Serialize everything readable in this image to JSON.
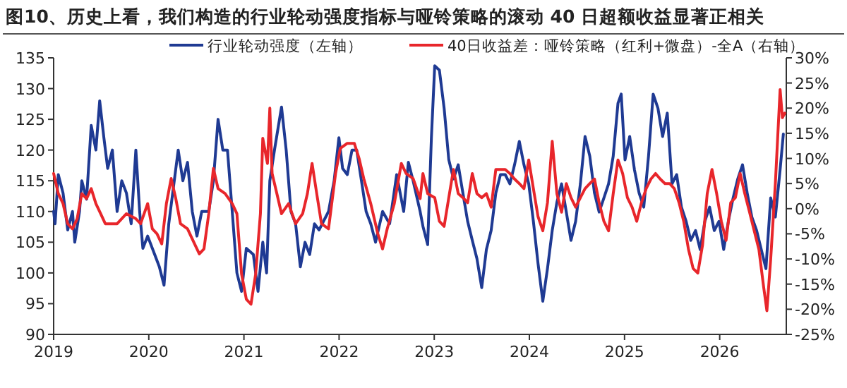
{
  "chart_data": {
    "type": "line",
    "title": "图10、历史上看，我们构造的行业轮动强度指标与哑铃策略的滚动 40 日超额收益显著正相关",
    "legend": "top",
    "grid": false,
    "marker": "none",
    "line_style": "solid",
    "xlim": [
      2019,
      2026.7
    ],
    "xticks": [
      2019,
      2020,
      2021,
      2022,
      2023,
      2024,
      2025,
      2026
    ],
    "ylim": [
      90,
      135
    ],
    "yticks": [
      90,
      95,
      100,
      105,
      110,
      115,
      120,
      125,
      130,
      135
    ],
    "y2lim": [
      -25,
      30
    ],
    "y2ticks": [
      {
        "value": -25,
        "label": "-25%"
      },
      {
        "value": -20,
        "label": "-20%"
      },
      {
        "value": -15,
        "label": "-15%"
      },
      {
        "value": -10,
        "label": "-10%"
      },
      {
        "value": -5,
        "label": "-5%"
      },
      {
        "value": 0,
        "label": "0%"
      },
      {
        "value": 5,
        "label": "5%"
      },
      {
        "value": 10,
        "label": "10%"
      },
      {
        "value": 15,
        "label": "15%"
      },
      {
        "value": 20,
        "label": "20%"
      },
      {
        "value": 25,
        "label": "25%"
      },
      {
        "value": 30,
        "label": "30%"
      }
    ],
    "series": [
      {
        "name": "行业轮动强度（左轴）",
        "color": "#1f3a93",
        "axis": "y",
        "x": [
          2019.0,
          2019.015,
          2019.049,
          2019.099,
          2019.148,
          2019.198,
          2019.222,
          2019.272,
          2019.296,
          2019.346,
          2019.395,
          2019.444,
          2019.484,
          2019.528,
          2019.568,
          2019.617,
          2019.667,
          2019.716,
          2019.765,
          2019.815,
          2019.864,
          2019.904,
          2019.938,
          2019.988,
          2020.062,
          2020.111,
          2020.16,
          2020.21,
          2020.309,
          2020.358,
          2020.407,
          2020.457,
          2020.506,
          2020.556,
          2020.63,
          2020.679,
          2020.728,
          2020.778,
          2020.827,
          2020.877,
          2020.926,
          2020.975,
          2021.025,
          2021.099,
          2021.148,
          2021.198,
          2021.238,
          2021.272,
          2021.321,
          2021.395,
          2021.444,
          2021.494,
          2021.543,
          2021.593,
          2021.642,
          2021.691,
          2021.741,
          2021.79,
          2021.889,
          2021.948,
          2021.998,
          2022.037,
          2022.086,
          2022.136,
          2022.185,
          2022.235,
          2022.284,
          2022.333,
          2022.383,
          2022.457,
          2022.531,
          2022.605,
          2022.679,
          2022.728,
          2022.778,
          2022.852,
          2022.881,
          2022.931,
          2022.97,
          2023.005,
          2023.054,
          2023.104,
          2023.153,
          2023.202,
          2023.252,
          2023.301,
          2023.351,
          2023.4,
          2023.449,
          2023.499,
          2023.548,
          2023.598,
          2023.647,
          2023.696,
          2023.746,
          2023.795,
          2023.844,
          2023.894,
          2023.943,
          2023.993,
          2024.042,
          2024.091,
          2024.141,
          2024.19,
          2024.24,
          2024.289,
          2024.338,
          2024.388,
          2024.437,
          2024.486,
          2024.536,
          2024.585,
          2024.635,
          2024.684,
          2024.733,
          2024.783,
          2024.832,
          2024.881,
          2024.931,
          2024.965,
          2025.005,
          2025.054,
          2025.104,
          2025.153,
          2025.202,
          2025.252,
          2025.301,
          2025.351,
          2025.4,
          2025.449,
          2025.499,
          2025.548,
          2025.598,
          2025.647,
          2025.696,
          2025.746,
          2025.795,
          2025.844,
          2025.894,
          2025.943,
          2025.993,
          2026.042,
          2026.091,
          2026.141,
          2026.19,
          2026.24,
          2026.289,
          2026.338,
          2026.388,
          2026.437,
          2026.486,
          2026.536,
          2026.585,
          2026.635,
          2026.669
        ],
        "values": [
          110,
          108,
          116,
          113,
          107,
          110,
          105,
          110,
          115,
          112,
          124,
          120,
          128,
          122,
          117,
          120,
          110,
          115,
          113,
          108,
          120,
          110,
          104,
          106,
          103,
          101,
          98,
          108,
          120,
          115,
          118,
          110,
          106,
          110,
          110,
          115,
          125,
          120,
          120,
          110,
          100,
          97,
          104,
          103,
          97,
          105,
          100,
          115,
          120,
          127,
          120,
          110,
          108,
          101,
          105,
          103,
          108,
          107,
          110,
          115,
          122,
          117,
          116,
          120,
          120,
          115,
          110,
          108,
          105,
          110,
          108,
          116,
          110,
          118,
          115,
          110,
          107.6,
          104.6,
          122,
          133.7,
          133,
          126.8,
          118.4,
          115.3,
          117.6,
          113,
          108.4,
          105.3,
          102.3,
          97.6,
          103.8,
          106.9,
          113,
          116,
          116,
          114.5,
          117.6,
          121.4,
          117.6,
          114.5,
          108.4,
          101.5,
          95.4,
          100.7,
          106.9,
          111.5,
          114.5,
          109.9,
          105.3,
          108.4,
          114.5,
          122.2,
          119,
          113,
          109.9,
          112.2,
          114.5,
          119,
          127.6,
          129.1,
          118.4,
          122.2,
          116.8,
          113,
          110.7,
          119,
          129.1,
          126.8,
          122.2,
          126,
          114.5,
          116,
          110.7,
          108.4,
          105.3,
          106.9,
          103.8,
          108.4,
          110.7,
          106.9,
          108.4,
          103.8,
          108.4,
          112.2,
          115.3,
          117.6,
          113,
          109.1,
          106.9,
          103.8,
          100.7,
          112.2,
          109.1,
          116.8,
          122.6
        ]
      },
      {
        "name": "40日收益差：哑铃策略（红利+微盘）-全A（右轴）",
        "color": "#e8262b",
        "axis": "y2",
        "x": [
          2019.0,
          2019.049,
          2019.099,
          2019.148,
          2019.198,
          2019.247,
          2019.296,
          2019.346,
          2019.395,
          2019.444,
          2019.494,
          2019.543,
          2019.593,
          2019.667,
          2019.765,
          2019.864,
          2019.914,
          2019.988,
          2020.037,
          2020.086,
          2020.136,
          2020.185,
          2020.235,
          2020.284,
          2020.333,
          2020.407,
          2020.481,
          2020.531,
          2020.58,
          2020.63,
          2020.679,
          2020.728,
          2020.802,
          2020.877,
          2020.926,
          2020.975,
          2021.025,
          2021.074,
          2021.123,
          2021.173,
          2021.198,
          2021.247,
          2021.272,
          2021.296,
          2021.346,
          2021.395,
          2021.469,
          2021.543,
          2021.617,
          2021.667,
          2021.716,
          2021.765,
          2021.815,
          2021.889,
          2021.963,
          2022.012,
          2022.086,
          2022.16,
          2022.21,
          2022.259,
          2022.333,
          2022.407,
          2022.457,
          2022.506,
          2022.58,
          2022.654,
          2022.704,
          2022.778,
          2022.852,
          2022.881,
          2022.931,
          2023.005,
          2023.054,
          2023.104,
          2023.153,
          2023.202,
          2023.252,
          2023.301,
          2023.351,
          2023.4,
          2023.449,
          2023.499,
          2023.548,
          2023.598,
          2023.647,
          2023.696,
          2023.746,
          2023.795,
          2023.844,
          2023.894,
          2023.943,
          2023.993,
          2024.042,
          2024.091,
          2024.141,
          2024.19,
          2024.24,
          2024.289,
          2024.338,
          2024.388,
          2024.437,
          2024.486,
          2024.536,
          2024.585,
          2024.635,
          2024.684,
          2024.733,
          2024.783,
          2024.832,
          2024.881,
          2024.931,
          2024.98,
          2025.03,
          2025.079,
          2025.128,
          2025.178,
          2025.227,
          2025.277,
          2025.326,
          2025.375,
          2025.425,
          2025.474,
          2025.523,
          2025.573,
          2025.622,
          2025.672,
          2025.721,
          2025.77,
          2025.82,
          2025.869,
          2025.919,
          2025.968,
          2026.017,
          2026.067,
          2026.116,
          2026.165,
          2026.215,
          2026.264,
          2026.314,
          2026.363,
          2026.412,
          2026.462,
          2026.496,
          2026.536,
          2026.585,
          2026.635,
          2026.659,
          2026.684
        ],
        "values": [
          7,
          3,
          1,
          -3,
          -4,
          -2,
          3,
          2,
          4,
          1,
          -1,
          -3,
          -3,
          -3,
          -1,
          -2,
          -3,
          1,
          -4,
          -5,
          -7,
          1,
          6,
          2,
          -3,
          -4,
          -7,
          -9,
          -8,
          -1,
          8,
          4,
          3,
          1,
          -1,
          -13,
          -18,
          -19,
          -13,
          -1,
          14,
          9,
          20,
          7,
          3,
          -1,
          1,
          -3,
          -1,
          3,
          9,
          3,
          -3,
          -4,
          7,
          12,
          13,
          13,
          10,
          6,
          1,
          -5,
          -8,
          -4,
          1,
          9,
          7,
          6,
          2,
          7,
          3,
          2.2,
          -2.5,
          -3.5,
          2.2,
          7.8,
          3,
          2.2,
          1.2,
          7,
          3,
          2.2,
          3,
          0.3,
          7.8,
          7.8,
          7.8,
          7,
          5.9,
          5,
          4,
          9.7,
          4,
          -1.6,
          -4.4,
          1.2,
          13.4,
          3,
          -0.7,
          5,
          2.2,
          0.3,
          2.2,
          4,
          5,
          5.9,
          1.2,
          -2.5,
          -4.4,
          3,
          9.7,
          7,
          2.2,
          0.3,
          -2.5,
          1.2,
          4,
          5.9,
          7,
          5.9,
          5,
          5,
          4,
          1.2,
          -2.5,
          -8.1,
          -11.9,
          -12.8,
          -7.2,
          3,
          7.8,
          3,
          -2.5,
          -6.3,
          1.2,
          2.2,
          7,
          3,
          -0.7,
          -4.4,
          -8.1,
          -15.6,
          -20.3,
          -10,
          5,
          23.7,
          18.1,
          19
        ]
      }
    ]
  }
}
